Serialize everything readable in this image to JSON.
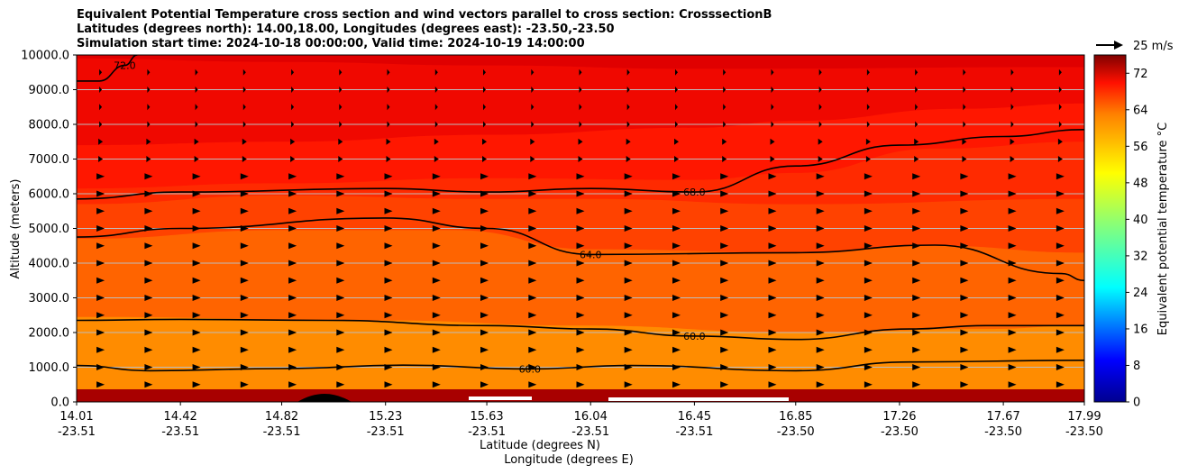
{
  "chart_data": {
    "type": "contour",
    "title_lines": [
      "Equivalent Potential Temperature cross section and wind vectors parallel to cross section: CrosssectionB",
      "Latitudes (degrees north): 14.00,18.00, Longitudes (degrees east): -23.50,-23.50",
      "Simulation start time: 2024-10-18 00:00:00, Valid time: 2024-10-19 14:00:00"
    ],
    "xlabel_lat": "Latitude (degrees N)",
    "xlabel_lon": "Longitude (degrees E)",
    "ylabel": "Altitude (meters)",
    "colorbar_label": "Equivalent potential temperature $^\\circ$C",
    "quiver_key_label": "25 m/s",
    "ylim": [
      0,
      10000
    ],
    "y_ticks": [
      0,
      1000,
      2000,
      3000,
      4000,
      5000,
      6000,
      7000,
      8000,
      9000,
      10000
    ],
    "y_tick_labels": [
      "0.0",
      "1000.0",
      "2000.0",
      "3000.0",
      "4000.0",
      "5000.0",
      "6000.0",
      "7000.0",
      "8000.0",
      "9000.0",
      "10000.0"
    ],
    "x_range": [
      14.01,
      17.99
    ],
    "x_ticks": [
      {
        "lat": 14.01,
        "lat_label": "14.01",
        "lon_label": "-23.51"
      },
      {
        "lat": 14.42,
        "lat_label": "14.42",
        "lon_label": "-23.51"
      },
      {
        "lat": 14.82,
        "lat_label": "14.82",
        "lon_label": "-23.51"
      },
      {
        "lat": 15.23,
        "lat_label": "15.23",
        "lon_label": "-23.51"
      },
      {
        "lat": 15.63,
        "lat_label": "15.63",
        "lon_label": "-23.51"
      },
      {
        "lat": 16.04,
        "lat_label": "16.04",
        "lon_label": "-23.51"
      },
      {
        "lat": 16.45,
        "lat_label": "16.45",
        "lon_label": "-23.51"
      },
      {
        "lat": 16.85,
        "lat_label": "16.85",
        "lon_label": "-23.50"
      },
      {
        "lat": 17.26,
        "lat_label": "17.26",
        "lon_label": "-23.50"
      },
      {
        "lat": 17.67,
        "lat_label": "17.67",
        "lon_label": "-23.50"
      },
      {
        "lat": 17.99,
        "lat_label": "17.99",
        "lon_label": "-23.50"
      }
    ],
    "colorbar": {
      "range": [
        0,
        76
      ],
      "tick_values": [
        0,
        8,
        16,
        24,
        32,
        40,
        48,
        56,
        64,
        72
      ],
      "tick_labels": [
        "0",
        "8",
        "16",
        "24",
        "32",
        "40",
        "48",
        "56",
        "64",
        "72"
      ]
    },
    "grid_y": true,
    "fill_bands": [
      {
        "level_min": 58,
        "level_max": 60,
        "color": "#ff8c00",
        "top_profile": [
          [
            14.01,
            2450
          ],
          [
            15.2,
            2350
          ],
          [
            16.0,
            2200
          ],
          [
            16.85,
            2000
          ],
          [
            17.6,
            2100
          ],
          [
            17.99,
            2200
          ]
        ]
      },
      {
        "level_min": 60,
        "level_max": 62,
        "color": "#ff6400",
        "top_profile": [
          [
            14.01,
            4700
          ],
          [
            14.82,
            4950
          ],
          [
            15.5,
            4950
          ],
          [
            16.04,
            4400
          ],
          [
            16.85,
            4300
          ],
          [
            17.4,
            4500
          ],
          [
            17.99,
            4300
          ]
        ]
      },
      {
        "level_min": 62,
        "level_max": 64,
        "color": "#ff4200",
        "top_profile": [
          [
            14.01,
            5700
          ],
          [
            14.82,
            5950
          ],
          [
            15.63,
            5850
          ],
          [
            16.04,
            5850
          ],
          [
            16.85,
            5700
          ],
          [
            17.99,
            5850
          ]
        ]
      },
      {
        "level_min": 64,
        "level_max": 66,
        "color": "#ff2a00",
        "top_profile": [
          [
            14.01,
            6150
          ],
          [
            14.82,
            6300
          ],
          [
            15.63,
            6450
          ],
          [
            16.45,
            6400
          ],
          [
            16.85,
            6600
          ],
          [
            17.4,
            7300
          ],
          [
            17.99,
            7500
          ]
        ]
      },
      {
        "level_min": 66,
        "level_max": 68,
        "color": "#ff1700",
        "top_profile": [
          [
            14.01,
            7400
          ],
          [
            14.82,
            7500
          ],
          [
            15.63,
            7700
          ],
          [
            16.45,
            7900
          ],
          [
            16.85,
            8100
          ],
          [
            17.5,
            8450
          ],
          [
            17.99,
            8600
          ]
        ]
      },
      {
        "level_min": 68,
        "level_max": 70,
        "color": "#f00800",
        "top_profile": [
          [
            14.01,
            9900
          ],
          [
            14.82,
            9800
          ],
          [
            15.63,
            9700
          ],
          [
            16.45,
            9600
          ],
          [
            17.99,
            9650
          ]
        ]
      },
      {
        "level_min": 70,
        "level_max": 72,
        "color": "#e00000",
        "top_profile": [
          [
            14.01,
            10000
          ],
          [
            17.99,
            10000
          ]
        ]
      }
    ],
    "contours": [
      {
        "level": 60,
        "label": "60.0",
        "points": [
          [
            14.01,
            1050
          ],
          [
            14.3,
            900
          ],
          [
            14.82,
            960
          ],
          [
            15.3,
            1060
          ],
          [
            15.8,
            950
          ],
          [
            16.2,
            1050
          ],
          [
            16.85,
            900
          ],
          [
            17.3,
            1150
          ],
          [
            17.99,
            1200
          ]
        ]
      },
      {
        "level": 60,
        "label": "60.0",
        "points": [
          [
            14.01,
            2350
          ],
          [
            14.42,
            2380
          ],
          [
            15.0,
            2350
          ],
          [
            15.63,
            2200
          ],
          [
            16.04,
            2100
          ],
          [
            16.45,
            1900
          ],
          [
            16.85,
            1800
          ],
          [
            17.3,
            2100
          ],
          [
            17.6,
            2200
          ],
          [
            17.99,
            2200
          ]
        ]
      },
      {
        "level": 64,
        "label": "64.0",
        "points": [
          [
            14.01,
            4750
          ],
          [
            14.42,
            5000
          ],
          [
            15.23,
            5300
          ],
          [
            15.63,
            5000
          ],
          [
            16.04,
            4250
          ],
          [
            16.85,
            4300
          ],
          [
            17.4,
            4520
          ],
          [
            17.9,
            3700
          ],
          [
            17.99,
            3500
          ]
        ]
      },
      {
        "level": 68,
        "label": "68.0",
        "points": [
          [
            14.01,
            5850
          ],
          [
            14.42,
            6050
          ],
          [
            15.23,
            6150
          ],
          [
            15.63,
            6050
          ],
          [
            16.04,
            6150
          ],
          [
            16.45,
            6050
          ],
          [
            16.85,
            6800
          ],
          [
            17.26,
            7400
          ],
          [
            17.67,
            7650
          ],
          [
            17.99,
            7850
          ]
        ]
      },
      {
        "level": 72,
        "label": "72.0",
        "points": [
          [
            14.01,
            9250
          ],
          [
            14.1,
            9250
          ],
          [
            14.2,
            9700
          ],
          [
            14.25,
            10000
          ]
        ]
      }
    ],
    "wind_vector_rows_m": [
      500,
      1000,
      1500,
      2000,
      2500,
      3000,
      3500,
      4000,
      4500,
      5000,
      5500,
      6000,
      6500,
      7000,
      7500,
      8000,
      8500,
      9000,
      9500
    ]
  }
}
